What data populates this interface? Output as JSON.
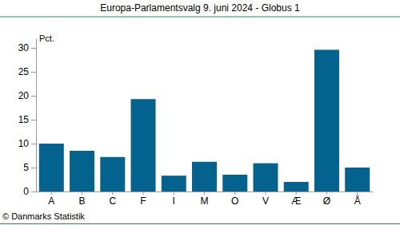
{
  "chart_data": {
    "type": "bar",
    "title": "Europa-Parlamentsvalg 9. juni 2024 - Globus 1",
    "y_label": "Pct.",
    "source": "© Danmarks Statistik",
    "categories": [
      "A",
      "B",
      "C",
      "F",
      "I",
      "M",
      "O",
      "V",
      "Æ",
      "Ø",
      "Å"
    ],
    "values": [
      10.0,
      8.5,
      7.2,
      19.3,
      3.3,
      6.2,
      3.5,
      5.9,
      2.0,
      29.6,
      5.0
    ],
    "color": "#04628f",
    "ylim": [
      0,
      32
    ],
    "yticks": [
      0,
      5,
      10,
      15,
      20,
      25,
      30
    ],
    "grid": false
  }
}
